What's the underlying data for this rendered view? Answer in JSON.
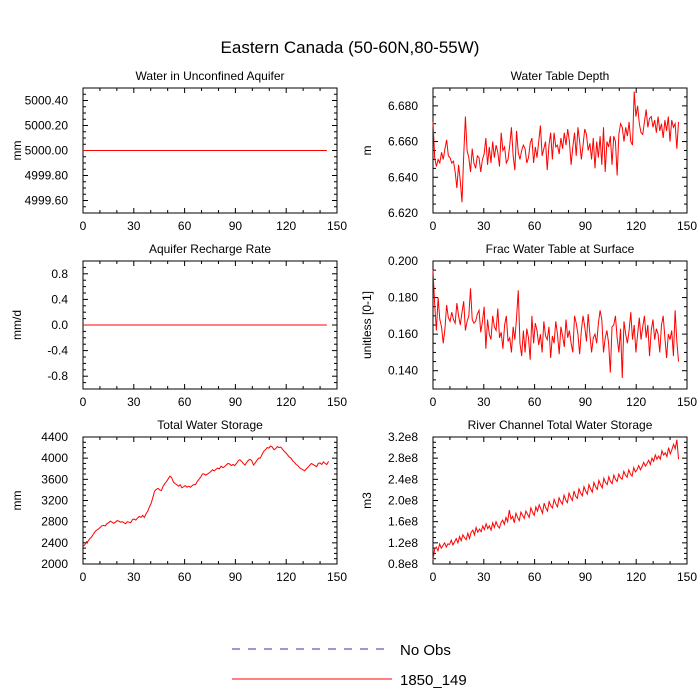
{
  "figure": {
    "title": "Eastern Canada (50-60N,80-55W)"
  },
  "legend": {
    "entries": [
      {
        "label": "No Obs",
        "color": "#3333aa",
        "style": "dashed"
      },
      {
        "label": "1850_149",
        "color": "#ff0000",
        "style": "solid"
      }
    ]
  },
  "chart_data": [
    {
      "type": "line",
      "title": "Water in Unconfined Aquifer",
      "ylabel": "mm",
      "xlim": [
        0,
        150
      ],
      "ylim": [
        4999.5,
        5000.5
      ],
      "xticks": [
        "0",
        "30",
        "60",
        "90",
        "120",
        "150"
      ],
      "yticks": [
        {
          "value": 4999.6,
          "label": "4999.60"
        },
        {
          "value": 4999.8,
          "label": "4999.80"
        },
        {
          "value": 5000.0,
          "label": "5000.00"
        },
        {
          "value": 5000.2,
          "label": "5000.20"
        },
        {
          "value": 5000.4,
          "label": "5000.40"
        }
      ],
      "series": [
        {
          "name": "1850_149",
          "x_start": 0,
          "x_step": 1,
          "values": [
            5000.0,
            5000.0
          ]
        }
      ],
      "series_x": [
        0,
        144
      ]
    },
    {
      "type": "line",
      "title": "Water Table Depth",
      "ylabel": "m",
      "xlim": [
        0,
        150
      ],
      "ylim": [
        6.62,
        6.69
      ],
      "xticks": [
        "0",
        "30",
        "60",
        "90",
        "120",
        "150"
      ],
      "yticks": [
        {
          "value": 6.62,
          "label": "6.620"
        },
        {
          "value": 6.64,
          "label": "6.640"
        },
        {
          "value": 6.66,
          "label": "6.660"
        },
        {
          "value": 6.68,
          "label": "6.680"
        }
      ],
      "series": [
        {
          "name": "1850_149",
          "x_start": 0,
          "x_step": 1,
          "values": [
            6.671,
            6.651,
            6.646,
            6.65,
            6.648,
            6.654,
            6.65,
            6.656,
            6.661,
            6.652,
            6.651,
            6.648,
            6.649,
            6.643,
            6.634,
            6.647,
            6.638,
            6.626,
            6.652,
            6.674,
            6.655,
            6.651,
            6.643,
            6.656,
            6.648,
            6.645,
            6.652,
            6.651,
            6.643,
            6.65,
            6.653,
            6.662,
            6.647,
            6.657,
            6.648,
            6.66,
            6.651,
            6.658,
            6.654,
            6.646,
            6.665,
            6.655,
            6.657,
            6.648,
            6.65,
            6.658,
            6.668,
            6.652,
            6.644,
            6.666,
            6.654,
            6.65,
            6.655,
            6.658,
            6.656,
            6.648,
            6.651,
            6.659,
            6.662,
            6.648,
            6.657,
            6.651,
            6.66,
            6.669,
            6.652,
            6.656,
            6.66,
            6.644,
            6.658,
            6.665,
            6.65,
            6.665,
            6.657,
            6.658,
            6.653,
            6.662,
            6.656,
            6.665,
            6.658,
            6.667,
            6.66,
            6.647,
            6.657,
            6.665,
            6.652,
            6.668,
            6.66,
            6.65,
            6.658,
            6.667,
            6.664,
            6.655,
            6.659,
            6.65,
            6.662,
            6.645,
            6.66,
            6.651,
            6.663,
            6.647,
            6.668,
            6.643,
            6.66,
            6.657,
            6.663,
            6.647,
            6.663,
            6.66,
            6.641,
            6.664,
            6.67,
            6.668,
            6.66,
            6.668,
            6.663,
            6.671,
            6.66,
            6.658,
            6.688,
            6.674,
            6.68,
            6.67,
            6.665,
            6.664,
            6.671,
            6.678,
            6.668,
            6.673,
            6.674,
            6.668,
            6.672,
            6.665,
            6.674,
            6.666,
            6.67,
            6.662,
            6.672,
            6.666,
            6.674,
            6.66,
            6.672,
            6.668,
            6.67,
            6.656,
            6.671
          ]
        }
      ],
      "series_x_compress": 146
    },
    {
      "type": "line",
      "title": "Aquifer Recharge Rate",
      "ylabel": "mm/d",
      "xlim": [
        0,
        150
      ],
      "ylim": [
        -1.0,
        1.0
      ],
      "xticks": [
        "0",
        "30",
        "60",
        "90",
        "120",
        "150"
      ],
      "yticks": [
        {
          "value": -0.8,
          "label": "-0.8"
        },
        {
          "value": -0.4,
          "label": "-0.4"
        },
        {
          "value": 0.0,
          "label": "0.0"
        },
        {
          "value": 0.4,
          "label": "0.4"
        },
        {
          "value": 0.8,
          "label": "0.8"
        }
      ],
      "series": [
        {
          "name": "1850_149",
          "x_start": 0,
          "x_step": 1,
          "values": [
            0.0,
            0.0
          ]
        }
      ],
      "series_x": [
        0,
        144
      ]
    },
    {
      "type": "line",
      "title": "Frac Water Table at Surface",
      "ylabel": "unitless [0-1]",
      "xlim": [
        0,
        150
      ],
      "ylim": [
        0.13,
        0.2
      ],
      "xticks": [
        "0",
        "30",
        "60",
        "90",
        "120",
        "150"
      ],
      "yticks": [
        {
          "value": 0.14,
          "label": "0.140"
        },
        {
          "value": 0.16,
          "label": "0.160"
        },
        {
          "value": 0.18,
          "label": "0.180"
        },
        {
          "value": 0.2,
          "label": "0.200"
        }
      ],
      "series": [
        {
          "name": "1850_149",
          "x_start": 0,
          "x_step": 1,
          "values": [
            0.195,
            0.176,
            0.162,
            0.18,
            0.168,
            0.164,
            0.155,
            0.163,
            0.176,
            0.169,
            0.167,
            0.172,
            0.168,
            0.166,
            0.177,
            0.17,
            0.165,
            0.172,
            0.178,
            0.162,
            0.167,
            0.17,
            0.185,
            0.168,
            0.166,
            0.167,
            0.171,
            0.173,
            0.161,
            0.167,
            0.175,
            0.152,
            0.168,
            0.16,
            0.157,
            0.17,
            0.164,
            0.162,
            0.174,
            0.158,
            0.161,
            0.152,
            0.165,
            0.17,
            0.156,
            0.158,
            0.15,
            0.164,
            0.157,
            0.169,
            0.184,
            0.155,
            0.148,
            0.162,
            0.15,
            0.163,
            0.158,
            0.146,
            0.17,
            0.155,
            0.166,
            0.162,
            0.154,
            0.16,
            0.15,
            0.167,
            0.159,
            0.157,
            0.164,
            0.147,
            0.159,
            0.155,
            0.167,
            0.16,
            0.149,
            0.164,
            0.159,
            0.153,
            0.168,
            0.158,
            0.162,
            0.155,
            0.15,
            0.17,
            0.166,
            0.16,
            0.149,
            0.162,
            0.17,
            0.164,
            0.156,
            0.171,
            0.16,
            0.15,
            0.158,
            0.16,
            0.155,
            0.166,
            0.173,
            0.168,
            0.15,
            0.158,
            0.162,
            0.155,
            0.139,
            0.164,
            0.165,
            0.17,
            0.158,
            0.15,
            0.163,
            0.136,
            0.167,
            0.16,
            0.155,
            0.162,
            0.172,
            0.157,
            0.165,
            0.15,
            0.16,
            0.169,
            0.157,
            0.164,
            0.17,
            0.158,
            0.165,
            0.148,
            0.162,
            0.168,
            0.157,
            0.163,
            0.16,
            0.15,
            0.165,
            0.17,
            0.158,
            0.147,
            0.16,
            0.157,
            0.162,
            0.148,
            0.173,
            0.156,
            0.145
          ]
        }
      ],
      "series_x_compress": 146
    },
    {
      "type": "line",
      "title": "Total Water Storage",
      "ylabel": "mm",
      "xlim": [
        0,
        150
      ],
      "ylim": [
        2000,
        4400
      ],
      "xticks": [
        "0",
        "30",
        "60",
        "90",
        "120",
        "150"
      ],
      "yticks": [
        {
          "value": 2000,
          "label": "2000"
        },
        {
          "value": 2400,
          "label": "2400"
        },
        {
          "value": 2800,
          "label": "2800"
        },
        {
          "value": 3200,
          "label": "3200"
        },
        {
          "value": 3600,
          "label": "3600"
        },
        {
          "value": 4000,
          "label": "4000"
        },
        {
          "value": 4400,
          "label": "4400"
        }
      ],
      "series": [
        {
          "name": "1850_149",
          "x_start": 0,
          "x_step": 1,
          "values": [
            2330,
            2360,
            2420,
            2430,
            2480,
            2510,
            2560,
            2610,
            2640,
            2660,
            2690,
            2720,
            2730,
            2720,
            2760,
            2780,
            2810,
            2790,
            2770,
            2790,
            2820,
            2810,
            2790,
            2800,
            2780,
            2760,
            2800,
            2790,
            2780,
            2840,
            2850,
            2830,
            2870,
            2900,
            2880,
            2920,
            2880,
            2950,
            3000,
            3080,
            3150,
            3260,
            3380,
            3410,
            3430,
            3400,
            3390,
            3470,
            3520,
            3560,
            3610,
            3660,
            3630,
            3550,
            3520,
            3500,
            3470,
            3500,
            3440,
            3460,
            3480,
            3450,
            3470,
            3450,
            3480,
            3500,
            3500,
            3560,
            3600,
            3640,
            3700,
            3700,
            3680,
            3700,
            3720,
            3750,
            3780,
            3760,
            3790,
            3810,
            3800,
            3850,
            3820,
            3840,
            3870,
            3900,
            3890,
            3860,
            3880,
            3860,
            3900,
            3950,
            3970,
            3940,
            3900,
            3870,
            3920,
            3960,
            3980,
            3950,
            3870,
            3910,
            3960,
            4000,
            4000,
            4070,
            4130,
            4160,
            4200,
            4190,
            4230,
            4210,
            4160,
            4180,
            4220,
            4200,
            4210,
            4170,
            4130,
            4100,
            4060,
            4020,
            4000,
            3950,
            3920,
            3880,
            3860,
            3820,
            3800,
            3780,
            3760,
            3800,
            3830,
            3870,
            3900,
            3880,
            3860,
            3840,
            3900,
            3910,
            3880,
            3930,
            3900,
            3880,
            3940
          ]
        }
      ],
      "series_x_compress": 146
    },
    {
      "type": "line",
      "title": "River Channel Total Water Storage",
      "ylabel": "m3",
      "xlim": [
        0,
        150
      ],
      "ylim": [
        80000000,
        320000000
      ],
      "xticks": [
        "0",
        "30",
        "60",
        "90",
        "120",
        "150"
      ],
      "yticks": [
        {
          "value": 80000000,
          "label": "0.8e8"
        },
        {
          "value": 120000000,
          "label": "1.2e8"
        },
        {
          "value": 160000000,
          "label": "1.6e8"
        },
        {
          "value": 200000000,
          "label": "2.0e8"
        },
        {
          "value": 240000000,
          "label": "2.4e8"
        },
        {
          "value": 280000000,
          "label": "2.8e8"
        },
        {
          "value": 320000000,
          "label": "3.2e8"
        }
      ],
      "series": [
        {
          "name": "1850_149",
          "x_start": 0,
          "x_step": 1,
          "values": [
            88000000,
            108000000,
            112000000,
            105000000,
            118000000,
            110000000,
            115000000,
            120000000,
            112000000,
            118000000,
            117000000,
            125000000,
            116000000,
            122000000,
            128000000,
            120000000,
            132000000,
            124000000,
            135000000,
            130000000,
            126000000,
            138000000,
            128000000,
            140000000,
            144000000,
            135000000,
            149000000,
            140000000,
            146000000,
            141000000,
            152000000,
            145000000,
            156000000,
            147000000,
            152000000,
            144000000,
            158000000,
            149000000,
            160000000,
            152000000,
            148000000,
            158000000,
            163000000,
            155000000,
            168000000,
            160000000,
            182000000,
            165000000,
            170000000,
            158000000,
            176000000,
            168000000,
            162000000,
            178000000,
            172000000,
            166000000,
            180000000,
            174000000,
            168000000,
            186000000,
            178000000,
            172000000,
            188000000,
            180000000,
            192000000,
            184000000,
            176000000,
            195000000,
            186000000,
            180000000,
            198000000,
            190000000,
            186000000,
            202000000,
            194000000,
            188000000,
            205000000,
            198000000,
            193000000,
            210000000,
            201000000,
            196000000,
            214000000,
            206000000,
            200000000,
            218000000,
            208000000,
            204000000,
            222000000,
            214000000,
            209000000,
            226000000,
            218000000,
            212000000,
            230000000,
            222000000,
            216000000,
            234000000,
            226000000,
            221000000,
            238000000,
            230000000,
            224000000,
            242000000,
            234000000,
            230000000,
            245000000,
            236000000,
            232000000,
            248000000,
            240000000,
            236000000,
            250000000,
            243000000,
            240000000,
            255000000,
            248000000,
            244000000,
            258000000,
            250000000,
            246000000,
            262000000,
            254000000,
            258000000,
            266000000,
            258000000,
            264000000,
            272000000,
            265000000,
            270000000,
            276000000,
            268000000,
            280000000,
            274000000,
            286000000,
            278000000,
            284000000,
            278000000,
            294000000,
            286000000,
            290000000,
            283000000,
            300000000,
            288000000,
            296000000,
            306000000,
            298000000,
            315000000,
            278000000
          ]
        }
      ],
      "series_x_compress": 146
    }
  ]
}
